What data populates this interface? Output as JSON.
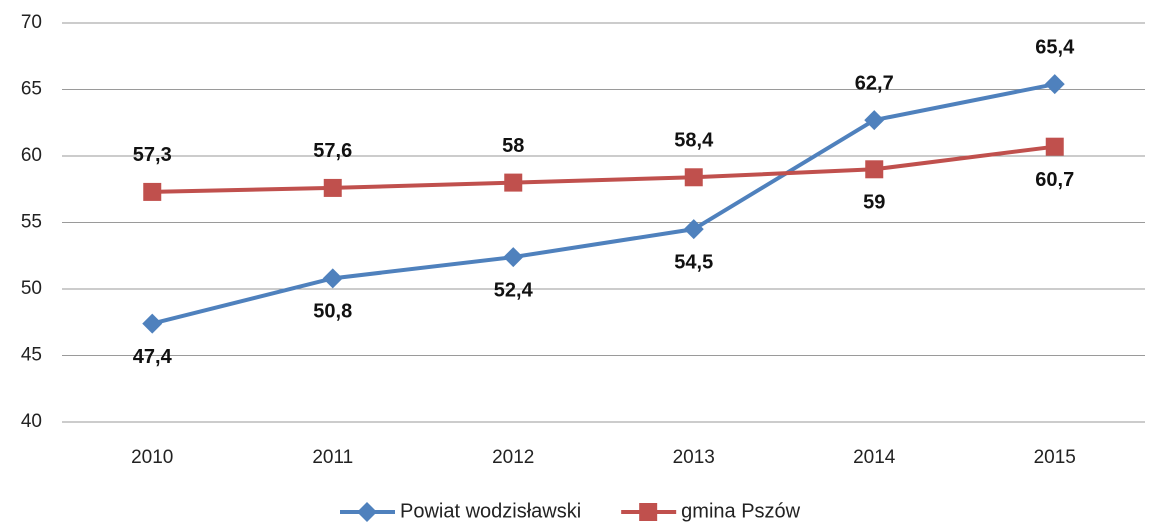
{
  "chart_data": {
    "type": "line",
    "categories": [
      "2010",
      "2011",
      "2012",
      "2013",
      "2014",
      "2015"
    ],
    "series": [
      {
        "name": "Powiat wodzisławski",
        "color": "#4f81bd",
        "marker": "diamond",
        "values": [
          47.4,
          50.8,
          52.4,
          54.5,
          62.7,
          65.4
        ],
        "value_labels": [
          "47,4",
          "50,8",
          "52,4",
          "54,5",
          "62,7",
          "65,4"
        ]
      },
      {
        "name": "gmina Pszów",
        "color": "#c0504d",
        "marker": "square",
        "values": [
          57.3,
          57.6,
          58,
          58.4,
          59,
          60.7
        ],
        "value_labels": [
          "57,3",
          "57,6",
          "58",
          "58,4",
          "59",
          "60,7"
        ]
      }
    ],
    "ylim": [
      40,
      70
    ],
    "yticks": [
      40,
      45,
      50,
      55,
      60,
      65,
      70
    ],
    "grid": true,
    "legend": "bottom"
  }
}
